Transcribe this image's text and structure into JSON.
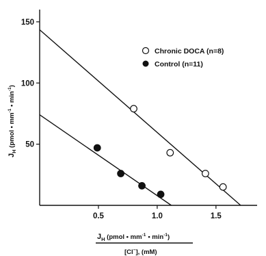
{
  "chart_data": {
    "type": "scatter",
    "xlabel_parts": {
      "numer_sym": "J",
      "numer_sub": "H",
      "numer_rest": " (pmol • mm",
      "numer_sup1": "-1",
      "numer_mid": "• min",
      "numer_sup2": "-1",
      "numer_close": ")",
      "denom": "[Cl",
      "denom_sup": "−",
      "denom_rest": "], (mM)"
    },
    "ylabel_parts": {
      "sym": "J",
      "sub": "H",
      "rest": " (pmol • mm",
      "sup1": "-1",
      "mid": " •  min",
      "sup2": "-1",
      "close": ")"
    },
    "xlim": [
      0,
      1.85
    ],
    "ylim": [
      0,
      160
    ],
    "xticks": [
      0.5,
      1.0,
      1.5
    ],
    "xtick_labels": [
      "0.5",
      "1.0",
      "1.5"
    ],
    "yticks": [
      50,
      100,
      150
    ],
    "ytick_labels": [
      "50",
      "100",
      "150"
    ],
    "series": [
      {
        "name": "Chronic DOCA (n=8)",
        "marker": "open-circle",
        "points": [
          [
            0.8,
            79
          ],
          [
            1.11,
            43
          ],
          [
            1.41,
            26
          ],
          [
            1.56,
            15
          ]
        ],
        "fit": [
          [
            0.0,
            143.5
          ],
          [
            1.71,
            0
          ]
        ]
      },
      {
        "name": "Control (n=11)",
        "marker": "filled-circle",
        "points": [
          [
            0.49,
            47
          ],
          [
            0.69,
            26
          ],
          [
            0.87,
            16
          ],
          [
            1.03,
            9
          ]
        ],
        "fit": [
          [
            0.0,
            74
          ],
          [
            1.12,
            0
          ]
        ]
      }
    ],
    "legend_position": "top-right",
    "grid": false
  }
}
